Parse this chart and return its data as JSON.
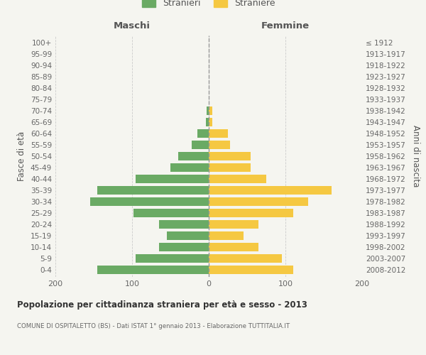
{
  "age_groups": [
    "0-4",
    "5-9",
    "10-14",
    "15-19",
    "20-24",
    "25-29",
    "30-34",
    "35-39",
    "40-44",
    "45-49",
    "50-54",
    "55-59",
    "60-64",
    "65-69",
    "70-74",
    "75-79",
    "80-84",
    "85-89",
    "90-94",
    "95-99",
    "100+"
  ],
  "birth_years": [
    "2008-2012",
    "2003-2007",
    "1998-2002",
    "1993-1997",
    "1988-1992",
    "1983-1987",
    "1978-1982",
    "1973-1977",
    "1968-1972",
    "1963-1967",
    "1958-1962",
    "1953-1957",
    "1948-1952",
    "1943-1947",
    "1938-1942",
    "1933-1937",
    "1928-1932",
    "1923-1927",
    "1918-1922",
    "1913-1917",
    "≤ 1912"
  ],
  "maschi": [
    145,
    95,
    65,
    55,
    65,
    98,
    155,
    145,
    95,
    50,
    40,
    22,
    15,
    4,
    3,
    0,
    0,
    0,
    0,
    0,
    0
  ],
  "femmine": [
    110,
    95,
    65,
    45,
    65,
    110,
    130,
    160,
    75,
    55,
    55,
    28,
    25,
    5,
    5,
    0,
    0,
    0,
    0,
    0,
    0
  ],
  "maschi_color": "#6aaa64",
  "femmine_color": "#f5c842",
  "title": "Popolazione per cittadinanza straniera per età e sesso - 2013",
  "subtitle": "COMUNE DI OSPITALETTO (BS) - Dati ISTAT 1° gennaio 2013 - Elaborazione TUTTITALIA.IT",
  "xlabel_left": "Maschi",
  "xlabel_right": "Femmine",
  "ylabel_left": "Fasce di età",
  "ylabel_right": "Anni di nascita",
  "legend_maschi": "Stranieri",
  "legend_femmine": "Straniere",
  "xlim": 200,
  "background_color": "#f5f5f0"
}
